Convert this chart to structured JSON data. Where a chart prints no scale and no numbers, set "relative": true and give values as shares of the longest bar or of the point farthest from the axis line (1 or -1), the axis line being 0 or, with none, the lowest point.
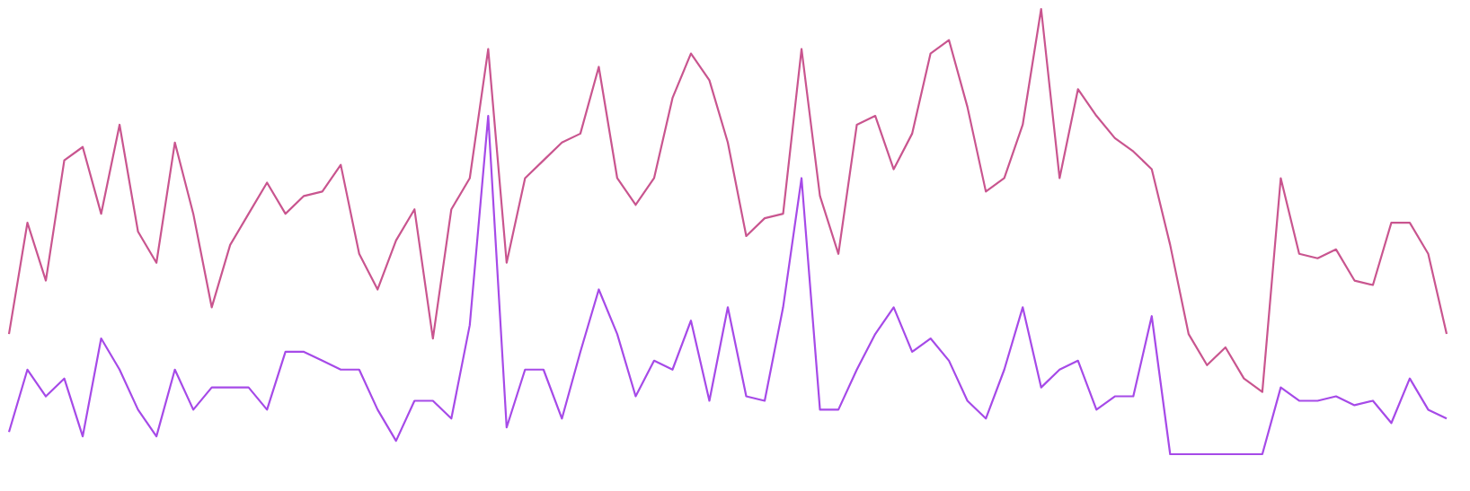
{
  "chart_data": {
    "type": "line",
    "relative": true,
    "tick_labels": false,
    "categories": [
      null,
      null,
      null,
      null,
      null,
      null,
      null,
      null,
      null,
      null,
      null,
      null,
      null,
      null,
      null,
      null,
      null,
      null,
      null,
      null,
      null,
      null,
      null,
      null,
      null,
      null,
      null,
      null,
      null,
      null,
      null,
      null,
      null,
      null,
      null,
      null,
      null,
      null,
      null,
      null,
      null,
      null,
      null,
      null,
      null,
      null,
      null,
      null,
      null,
      null,
      null,
      null,
      null,
      null,
      null,
      null,
      null,
      null,
      null,
      null,
      null,
      null,
      null,
      null,
      null,
      null,
      null,
      null,
      null,
      null,
      null,
      null,
      null,
      null,
      null,
      null,
      null,
      null,
      null
    ],
    "series": [
      {
        "color": "#c9558f",
        "values": [
          0.27,
          0.52,
          0.39,
          0.66,
          0.69,
          0.54,
          0.74,
          0.5,
          0.43,
          0.7,
          0.54,
          0.33,
          0.47,
          0.54,
          0.61,
          0.54,
          0.58,
          0.59,
          0.65,
          0.45,
          0.37,
          0.48,
          0.55,
          0.26,
          0.55,
          0.62,
          0.91,
          0.43,
          0.62,
          0.66,
          0.7,
          0.72,
          0.87,
          0.62,
          0.56,
          0.62,
          0.8,
          0.9,
          0.84,
          0.7,
          0.49,
          0.53,
          0.54,
          0.91,
          0.58,
          0.45,
          0.74,
          0.76,
          0.64,
          0.72,
          0.9,
          0.93,
          0.78,
          0.59,
          0.62,
          0.74,
          1,
          0.62,
          0.82,
          0.76,
          0.71,
          0.68,
          0.64,
          0.47,
          0.27,
          0.2,
          0.24,
          0.17,
          0.14,
          0.62,
          0.45,
          0.44,
          0.46,
          0.39,
          0.38,
          0.52,
          0.52,
          0.45,
          0.27
        ]
      },
      {
        "color": "#a64ae8",
        "values": [
          0.05,
          0.19,
          0.13,
          0.17,
          0.04,
          0.26,
          0.19,
          0.1,
          0.04,
          0.19,
          0.1,
          0.15,
          0.15,
          0.15,
          0.1,
          0.23,
          0.23,
          0.21,
          0.19,
          0.19,
          0.1,
          0.03,
          0.12,
          0.12,
          0.08,
          0.29,
          0.76,
          0.06,
          0.19,
          0.19,
          0.08,
          0.23,
          0.37,
          0.27,
          0.13,
          0.21,
          0.19,
          0.3,
          0.12,
          0.33,
          0.13,
          0.12,
          0.33,
          0.62,
          0.1,
          0.1,
          0.19,
          0.27,
          0.33,
          0.23,
          0.26,
          0.21,
          0.12,
          0.08,
          0.19,
          0.33,
          0.15,
          0.19,
          0.21,
          0.1,
          0.13,
          0.13,
          0.31,
          0,
          0,
          0,
          0,
          0,
          0,
          0.15,
          0.12,
          0.12,
          0.13,
          0.11,
          0.12,
          0.07,
          0.17,
          0.1,
          0.08
        ]
      }
    ]
  }
}
